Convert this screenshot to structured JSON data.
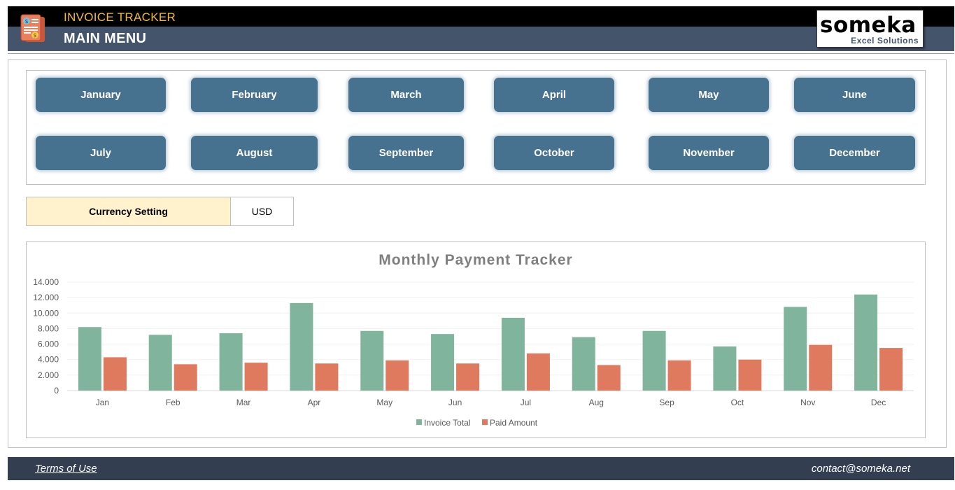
{
  "header": {
    "app_title": "INVOICE TRACKER",
    "page_title": "MAIN MENU",
    "icon": "invoice-document-icon",
    "logo": {
      "name": "someka",
      "subtitle": "Excel Solutions"
    }
  },
  "months": [
    [
      "January",
      "February",
      "March",
      "April",
      "May",
      "June"
    ],
    [
      "July",
      "August",
      "September",
      "October",
      "November",
      "December"
    ]
  ],
  "currency": {
    "label": "Currency Setting",
    "value": "USD"
  },
  "colors": {
    "header_dark": "#000000",
    "header_slate": "#44546a",
    "accent_title": "#f4b840",
    "button": "#46728f",
    "currency_bg": "#fff2cc",
    "invoice_series": "#80b49c",
    "paid_series": "#e07a5f",
    "footer": "#333f50"
  },
  "chart_data": {
    "type": "bar",
    "title": "Monthly Payment Tracker",
    "categories": [
      "Jan",
      "Feb",
      "Mar",
      "Apr",
      "May",
      "Jun",
      "Jul",
      "Aug",
      "Sep",
      "Oct",
      "Nov",
      "Dec"
    ],
    "series": [
      {
        "name": "Invoice Total",
        "color": "#80b49c",
        "values": [
          8200,
          7200,
          7400,
          11300,
          7700,
          7300,
          9400,
          6900,
          7700,
          5700,
          10800,
          12400
        ]
      },
      {
        "name": "Paid Amount",
        "color": "#e07a5f",
        "values": [
          4300,
          3400,
          3600,
          3500,
          3900,
          3500,
          4800,
          3300,
          3900,
          4000,
          5900,
          5500
        ]
      }
    ],
    "y_ticks": [
      "0",
      "2.000",
      "4.000",
      "6.000",
      "8.000",
      "10.000",
      "12.000",
      "14.000"
    ],
    "ylim": [
      0,
      14000
    ],
    "grid": true,
    "legend_position": "bottom"
  },
  "footer": {
    "terms": "Terms of Use",
    "contact": "contact@someka.net"
  }
}
